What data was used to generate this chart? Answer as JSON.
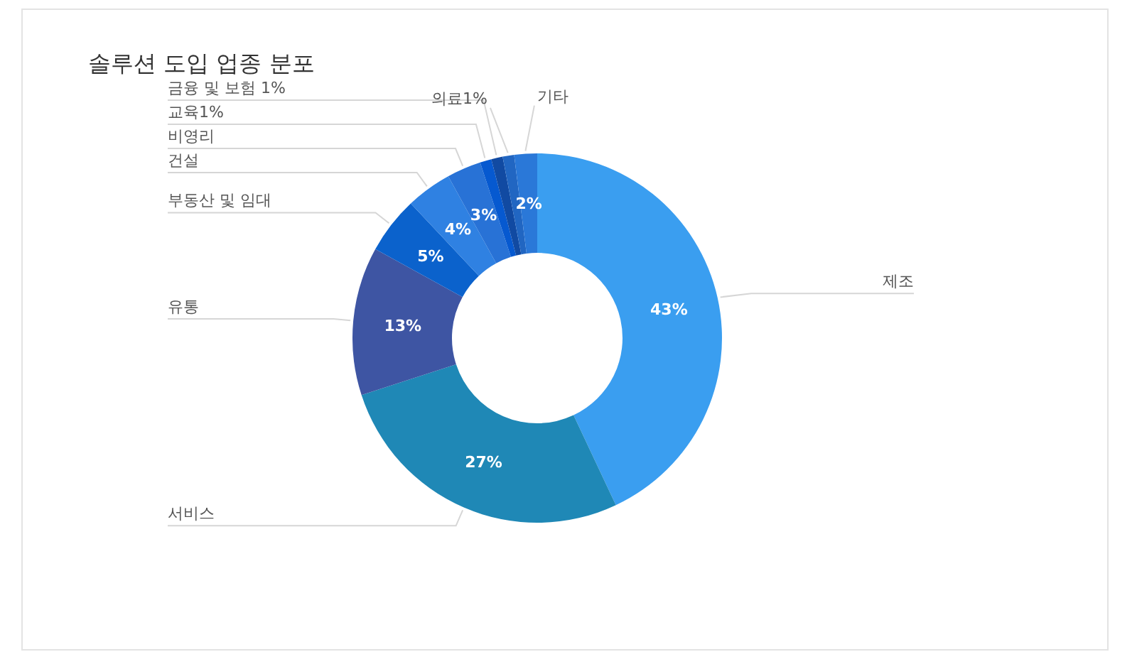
{
  "chart_data": {
    "type": "donut",
    "title": "솔루션 도입 업종 분포",
    "categories": [
      "제조",
      "서비스",
      "유통",
      "부동산 및 임대",
      "건설",
      "비영리",
      "교육1%",
      "금융 및 보험 1%",
      "의료1%",
      "기타"
    ],
    "values": [
      43,
      27,
      13,
      5,
      4,
      3,
      1,
      1,
      1,
      2
    ],
    "colors": [
      "#3a9ef0",
      "#1f88b6",
      "#3e55a3",
      "#0b62cc",
      "#2f81e2",
      "#2872d6",
      "#0659d0",
      "#114aa2",
      "#2166c2",
      "#2a78d8"
    ],
    "value_labels": [
      "43%",
      "27%",
      "13%",
      "5%",
      "4%",
      "3%",
      null,
      null,
      null,
      "2%"
    ]
  }
}
